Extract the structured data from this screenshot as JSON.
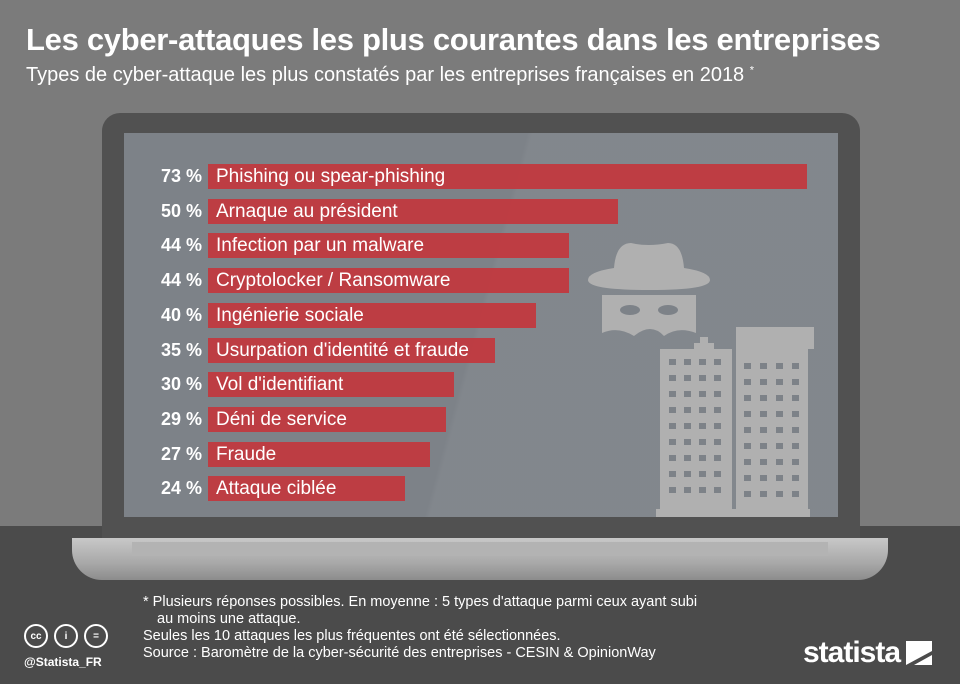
{
  "title": "Les cyber-attaques les plus courantes dans les entreprises",
  "subtitle": "Types de cyber-attaque les plus constatés par les entreprises françaises en 2018",
  "subtitle_mark": "*",
  "chart_data": {
    "type": "bar",
    "orientation": "horizontal",
    "unit": "%",
    "categories": [
      "Phishing ou spear-phishing",
      "Arnaque au président",
      "Infection par un malware",
      "Cryptolocker / Ransomware",
      "Ingénierie sociale",
      "Usurpation d'identité et fraude",
      "Vol d'identifiant",
      "Déni de service",
      "Fraude",
      "Attaque ciblée"
    ],
    "values": [
      73,
      50,
      44,
      44,
      40,
      35,
      30,
      29,
      27,
      24
    ],
    "value_labels": [
      "73 %",
      "50 %",
      "44 %",
      "44 %",
      "40 %",
      "35 %",
      "30 %",
      "29 %",
      "27 %",
      "24 %"
    ],
    "bar_color": "#c1393f",
    "xlim": [
      0,
      73
    ]
  },
  "footer": {
    "note1": "* Plusieurs réponses possibles. En moyenne : 5 types d'attaque parmi ceux ayant subi",
    "note1b": "au moins une attaque.",
    "note2": "Seules les 10 attaques les plus fréquentes ont été sélectionnées.",
    "source": "Source : Baromètre de la cyber-sécurité des entreprises - CESIN & OpinionWay",
    "handle": "@Statista_FR",
    "cc_icons": [
      "cc",
      "i",
      "="
    ],
    "logo": "statista"
  }
}
